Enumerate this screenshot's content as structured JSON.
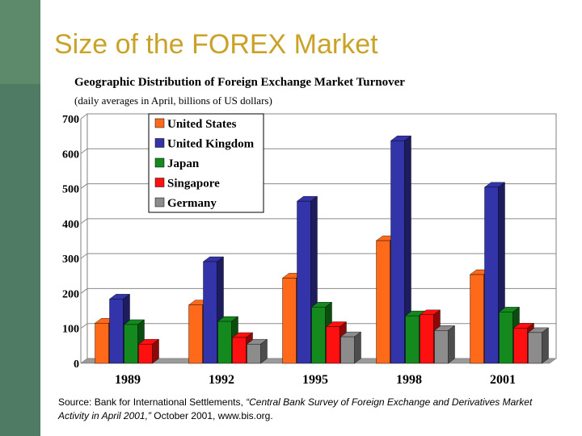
{
  "slide": {
    "title": "Size of the FOREX Market"
  },
  "chart_data": {
    "type": "bar",
    "title": "Geographic Distribution of Foreign Exchange Market Turnover",
    "subtitle": "(daily averages in April, billions of US dollars)",
    "xlabel": "",
    "ylabel": "",
    "categories": [
      "1989",
      "1992",
      "1995",
      "1998",
      "2001"
    ],
    "ylim": [
      0,
      700
    ],
    "yticks": [
      "0",
      "100",
      "200",
      "300",
      "400",
      "500",
      "600",
      "700"
    ],
    "grid": true,
    "legend_position": "top-left",
    "series": [
      {
        "name": "United States",
        "color": "#ff6a1a",
        "values": [
          115,
          167,
          244,
          351,
          254
        ]
      },
      {
        "name": "United Kingdom",
        "color": "#3333aa",
        "values": [
          184,
          291,
          464,
          637,
          504
        ]
      },
      {
        "name": "Japan",
        "color": "#148a1e",
        "values": [
          111,
          120,
          161,
          136,
          147
        ]
      },
      {
        "name": "Singapore",
        "color": "#ff1010",
        "values": [
          55,
          74,
          105,
          139,
          101
        ]
      },
      {
        "name": "Germany",
        "color": "#8c8c8c",
        "values": [
          0,
          55,
          76,
          94,
          88
        ]
      }
    ]
  },
  "source": {
    "prefix": "Source: Bank for International Settlements, ",
    "title": "“Central Bank Survey of Foreign Exchange and Derivatives Market Activity in April 2001,”",
    "suffix": " October 2001, www.bis.org."
  }
}
